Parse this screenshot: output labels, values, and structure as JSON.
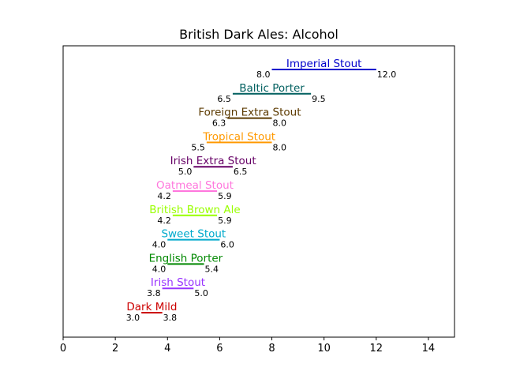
{
  "chart_data": {
    "type": "range",
    "title": "British Dark Ales: Alcohol",
    "xlabel": "",
    "ylabel": "",
    "xlim": [
      0,
      15
    ],
    "xticks": [
      0,
      2,
      4,
      6,
      8,
      10,
      12,
      14
    ],
    "grid": false,
    "legend": "none",
    "series": [
      {
        "name": "Imperial Stout",
        "low": 8.0,
        "high": 12.0,
        "color": "#0000cc",
        "low_label": "8.0",
        "high_label": "12.0"
      },
      {
        "name": "Baltic Porter",
        "low": 6.5,
        "high": 9.5,
        "color": "#005f5f",
        "low_label": "6.5",
        "high_label": "9.5"
      },
      {
        "name": "Foreign Extra Stout",
        "low": 6.3,
        "high": 8.0,
        "color": "#5c3a00",
        "low_label": "6.3",
        "high_label": "8.0"
      },
      {
        "name": "Tropical Stout",
        "low": 5.5,
        "high": 8.0,
        "color": "#ff9900",
        "low_label": "5.5",
        "high_label": "8.0"
      },
      {
        "name": "Irish Extra Stout",
        "low": 5.0,
        "high": 6.5,
        "color": "#660066",
        "low_label": "5.0",
        "high_label": "6.5"
      },
      {
        "name": "Oatmeal Stout",
        "low": 4.2,
        "high": 5.9,
        "color": "#ff77dd",
        "low_label": "4.2",
        "high_label": "5.9"
      },
      {
        "name": "British Brown Ale",
        "low": 4.2,
        "high": 5.9,
        "color": "#99ff00",
        "low_label": "4.2",
        "high_label": "5.9"
      },
      {
        "name": "Sweet Stout",
        "low": 4.0,
        "high": 6.0,
        "color": "#00aacc",
        "low_label": "4.0",
        "high_label": "6.0"
      },
      {
        "name": "English Porter",
        "low": 4.0,
        "high": 5.4,
        "color": "#008800",
        "low_label": "4.0",
        "high_label": "5.4"
      },
      {
        "name": "Irish Stout",
        "low": 3.8,
        "high": 5.0,
        "color": "#9933ff",
        "low_label": "3.8",
        "high_label": "5.0"
      },
      {
        "name": "Dark Mild",
        "low": 3.0,
        "high": 3.8,
        "color": "#cc0000",
        "low_label": "3.0",
        "high_label": "3.8"
      }
    ]
  }
}
